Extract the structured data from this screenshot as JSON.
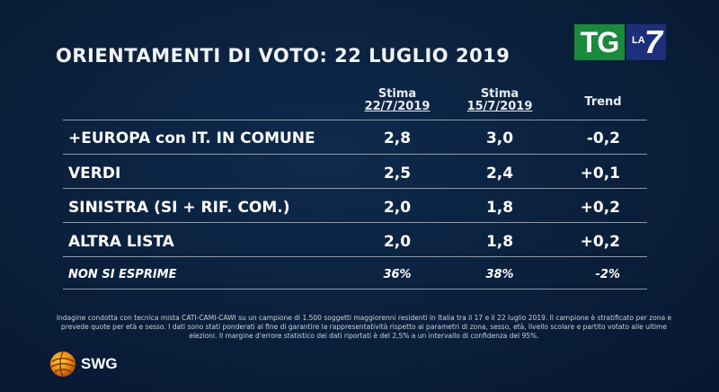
{
  "title": "ORIENTAMENTI DI VOTO: 22 LUGLIO 2019",
  "logo": {
    "tg": "TG",
    "la": "LA",
    "seven": "7"
  },
  "columns": [
    {
      "label": "Stima",
      "date": "22/7/2019"
    },
    {
      "label": "Stima",
      "date": "15/7/2019"
    },
    {
      "label": "Trend"
    }
  ],
  "chart_data": {
    "type": "table",
    "title": "ORIENTAMENTI DI VOTO: 22 LUGLIO 2019",
    "columns": [
      "Stima 22/7/2019",
      "Stima 15/7/2019",
      "Trend"
    ],
    "rows": [
      {
        "label": "+EUROPA con IT. IN COMUNE",
        "stima_22": "2,8",
        "stima_15": "3,0",
        "trend": "-0,2"
      },
      {
        "label": "VERDI",
        "stima_22": "2,5",
        "stima_15": "2,4",
        "trend": "+0,1"
      },
      {
        "label": "SINISTRA (SI + RIF. COM.)",
        "stima_22": "2,0",
        "stima_15": "1,8",
        "trend": "+0,2"
      },
      {
        "label": "ALTRA LISTA",
        "stima_22": "2,0",
        "stima_15": "1,8",
        "trend": "+0,2"
      },
      {
        "label": "NON SI ESPRIME",
        "stima_22": "36%",
        "stima_15": "38%",
        "trend": "-2%"
      }
    ]
  },
  "footnote": "Indagine condotta con tecnica mista CATI-CAMI-CAWI su un campione di 1.500 soggetti maggiorenni residenti in Italia tra il 17 e il 22 luglio 2019. Il campione è stratificato per zona e prevede quote per età e sesso. I dati sono stati ponderati al fine di garantire la rappresentatività rispetto ai parametri di zona, sesso, età, livello scolare e partito votato alle ultime elezioni. Il margine d'errore statistico dei dati riportati è del 2,5% a un intervallo di confidenza del 95%.",
  "swg": "SWG"
}
